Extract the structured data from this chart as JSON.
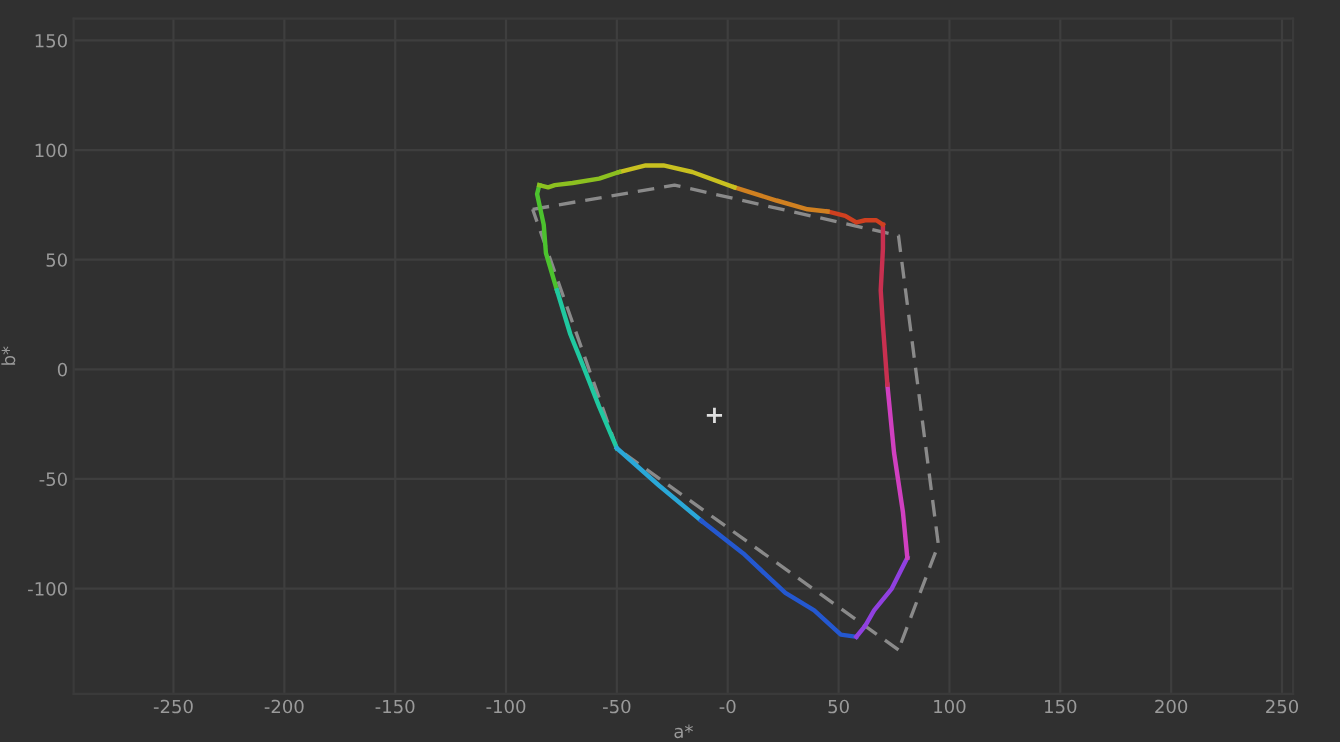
{
  "chart_data": {
    "type": "line",
    "xlabel": "a*",
    "ylabel": "b*",
    "xlim": [
      -295,
      255
    ],
    "ylim": [
      -148,
      160
    ],
    "xticks": [
      -250,
      -200,
      -150,
      -100,
      -50,
      {
        "value": 0,
        "label": "-0"
      },
      50,
      100,
      150,
      200,
      250
    ],
    "yticks": [
      -100,
      -50,
      0,
      50,
      100,
      150
    ],
    "grid": true,
    "legend": false,
    "series": [
      {
        "color": "#4cc22e",
        "x": [
          -85,
          -86,
          -83,
          -82,
          -77
        ],
        "values": [
          84,
          80,
          66,
          53,
          36
        ]
      },
      {
        "color": "#20c8a0",
        "x": [
          -77,
          -71,
          -65,
          -58,
          -50
        ],
        "values": [
          36,
          16,
          1,
          -17,
          -36
        ]
      },
      {
        "color": "#2aa8d8",
        "x": [
          -50,
          -31,
          -12
        ],
        "values": [
          -36,
          -53,
          -69
        ]
      },
      {
        "color": "#2458d0",
        "x": [
          -12,
          7,
          26,
          39,
          51,
          58
        ],
        "values": [
          -69,
          -84,
          -102,
          -110,
          -121,
          -122
        ]
      },
      {
        "color": "#9040e0",
        "x": [
          58,
          62,
          66,
          74,
          81
        ],
        "values": [
          -122,
          -117,
          -110,
          -100,
          -86
        ]
      },
      {
        "color": "#d040c0",
        "x": [
          81,
          79,
          75,
          72
        ],
        "values": [
          -86,
          -65,
          -38,
          -7
        ]
      },
      {
        "color": "#c83050",
        "x": [
          72,
          70,
          69,
          70,
          70
        ],
        "values": [
          -7,
          20,
          36,
          55,
          66
        ]
      },
      {
        "color": "#d04020",
        "x": [
          70,
          67,
          62,
          58,
          53,
          45
        ],
        "values": [
          66,
          68,
          68,
          67,
          70,
          72
        ]
      },
      {
        "color": "#d08020",
        "x": [
          45,
          36,
          22,
          3
        ],
        "values": [
          72,
          73,
          77,
          83
        ]
      },
      {
        "color": "#c8c020",
        "x": [
          3,
          -16,
          -29,
          -37,
          -49
        ],
        "values": [
          83,
          90,
          93,
          93,
          90
        ]
      },
      {
        "color": "#8cc020",
        "x": [
          -49,
          -58,
          -70,
          -78,
          -81,
          -85
        ],
        "values": [
          90,
          87,
          85,
          84,
          83,
          84
        ]
      },
      {
        "color": "#8a8a8a",
        "line_style": "dashed",
        "x": [
          -88,
          -24,
          77,
          95,
          77
        ],
        "values": [
          73,
          84,
          61,
          -80,
          -128
        ]
      },
      {
        "color": "#8a8a8a",
        "line_style": "dashed",
        "x": [
          77,
          -50,
          -88
        ],
        "values": [
          -128,
          -36,
          73
        ]
      },
      {
        "type": "scatter",
        "marker": "cross",
        "color": "#e0e0e0",
        "x": [
          -6
        ],
        "values": [
          -21
        ]
      }
    ]
  }
}
